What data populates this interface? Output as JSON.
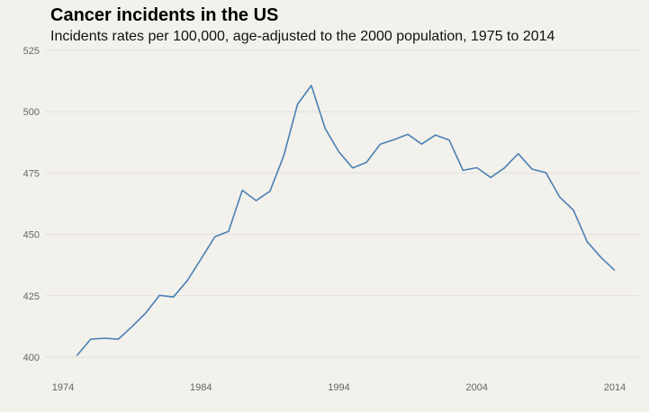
{
  "chart_data": {
    "type": "line",
    "title": "Cancer incidents in the US",
    "subtitle": "Incidents rates per 100,000, age-adjusted to the 2000 population, 1975 to 2014",
    "xlabel": "",
    "ylabel": "",
    "xlim": [
      1974,
      2014
    ],
    "ylim": [
      400,
      525
    ],
    "x_ticks": [
      1974,
      1984,
      1994,
      2004,
      2014
    ],
    "y_ticks": [
      400,
      425,
      450,
      475,
      500,
      525
    ],
    "grid": "horizontal",
    "colors": {
      "line": "#4a80b4",
      "grid": "#e2dfd8",
      "background": "#f3f1ec"
    },
    "series": [
      {
        "x": [
          1975,
          1976,
          1977,
          1978,
          1979,
          1980,
          1981,
          1982,
          1983,
          1984,
          1985,
          1986,
          1987,
          1988,
          1989,
          1990,
          1991,
          1992,
          1993,
          1994,
          1995,
          1996,
          1997,
          1998,
          1999,
          2000,
          2001,
          2002,
          2003,
          2004,
          2005,
          2006,
          2007,
          2008,
          2009,
          2010,
          2011,
          2012,
          2013,
          2014
        ],
        "values": [
          400.6,
          407.3,
          407.7,
          407.3,
          412.4,
          418.0,
          425.2,
          424.5,
          431.1,
          440.0,
          449.0,
          451.2,
          468.0,
          463.8,
          467.6,
          482.0,
          503.0,
          510.7,
          493.2,
          483.6,
          477.1,
          479.4,
          486.8,
          488.6,
          490.8,
          486.8,
          490.5,
          488.4,
          476.1,
          477.2,
          473.2,
          477.1,
          482.9,
          476.6,
          475.2,
          465.3,
          459.9,
          447.0,
          440.6,
          435.3
        ]
      }
    ]
  }
}
